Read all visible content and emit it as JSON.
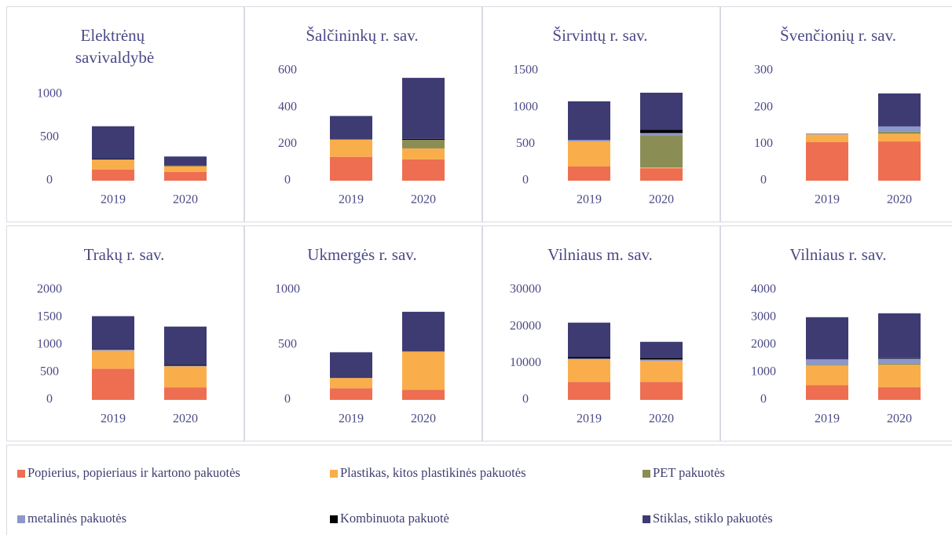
{
  "chart_data": [
    {
      "type": "bar",
      "title": "Elektrėnų savivaldybė",
      "categories": [
        "2019",
        "2020"
      ],
      "ylim": [
        0,
        1000
      ],
      "yticks": [
        0,
        500,
        1000
      ],
      "series": [
        {
          "values": [
            130,
            100
          ]
        },
        {
          "values": [
            115,
            70
          ]
        },
        {
          "values": [
            0,
            0
          ]
        },
        {
          "values": [
            0,
            0
          ]
        },
        {
          "values": [
            5,
            5
          ]
        },
        {
          "values": [
            380,
            105
          ]
        }
      ]
    },
    {
      "type": "bar",
      "title": "Šalčininkų r. sav.",
      "categories": [
        "2019",
        "2020"
      ],
      "ylim": [
        0,
        600
      ],
      "yticks": [
        0,
        200,
        400,
        600
      ],
      "series": [
        {
          "values": [
            130,
            116
          ]
        },
        {
          "values": [
            95,
            60
          ]
        },
        {
          "values": [
            0,
            47
          ]
        },
        {
          "values": [
            0,
            0
          ]
        },
        {
          "values": [
            0,
            5
          ]
        },
        {
          "values": [
            128,
            333
          ]
        }
      ]
    },
    {
      "type": "bar",
      "title": "Širvintų r. sav.",
      "categories": [
        "2019",
        "2020"
      ],
      "ylim": [
        0,
        1500
      ],
      "yticks": [
        0,
        500,
        1000,
        1500
      ],
      "series": [
        {
          "values": [
            193,
            170
          ]
        },
        {
          "values": [
            343,
            10
          ]
        },
        {
          "values": [
            0,
            440
          ]
        },
        {
          "values": [
            20,
            30
          ]
        },
        {
          "values": [
            0,
            45
          ]
        },
        {
          "values": [
            526,
            505
          ]
        }
      ]
    },
    {
      "type": "bar",
      "title": "Švenčionių r. sav.",
      "categories": [
        "2019",
        "2020"
      ],
      "ylim": [
        0,
        300
      ],
      "yticks": [
        0,
        100,
        200,
        300
      ],
      "series": [
        {
          "values": [
            105,
            107
          ]
        },
        {
          "values": [
            21,
            21
          ]
        },
        {
          "values": [
            0,
            5
          ]
        },
        {
          "values": [
            3,
            15
          ]
        },
        {
          "values": [
            0,
            0
          ]
        },
        {
          "values": [
            0,
            90
          ]
        }
      ]
    },
    {
      "type": "bar",
      "title": "Trakų r. sav.",
      "categories": [
        "2019",
        "2020"
      ],
      "ylim": [
        0,
        2000
      ],
      "yticks": [
        0,
        500,
        1000,
        1500,
        2000
      ],
      "series": [
        {
          "values": [
            567,
            227
          ]
        },
        {
          "values": [
            327,
            383
          ]
        },
        {
          "values": [
            0,
            0
          ]
        },
        {
          "values": [
            20,
            10
          ]
        },
        {
          "values": [
            10,
            15
          ]
        },
        {
          "values": [
            598,
            698
          ]
        }
      ]
    },
    {
      "type": "bar",
      "title": "Ukmergės r. sav.",
      "categories": [
        "2019",
        "2020"
      ],
      "ylim": [
        0,
        1000
      ],
      "yticks": [
        0,
        500,
        1000
      ],
      "series": [
        {
          "values": [
            106,
            92
          ]
        },
        {
          "values": [
            93,
            348
          ]
        },
        {
          "values": [
            0,
            0
          ]
        },
        {
          "values": [
            0,
            0
          ]
        },
        {
          "values": [
            0,
            0
          ]
        },
        {
          "values": [
            234,
            361
          ]
        }
      ]
    },
    {
      "type": "bar",
      "title": "Vilniaus m. sav.",
      "categories": [
        "2019",
        "2020"
      ],
      "ylim": [
        0,
        30000
      ],
      "yticks": [
        0,
        10000,
        20000,
        30000
      ],
      "series": [
        {
          "values": [
            4900,
            4900
          ]
        },
        {
          "values": [
            6170,
            5738
          ]
        },
        {
          "values": [
            0,
            0
          ]
        },
        {
          "values": [
            200,
            400
          ]
        },
        {
          "values": [
            400,
            400
          ]
        },
        {
          "values": [
            9400,
            4394
          ]
        }
      ]
    },
    {
      "type": "bar",
      "title": "Vilniaus r. sav.",
      "categories": [
        "2019",
        "2020"
      ],
      "ylim": [
        0,
        4000
      ],
      "yticks": [
        0,
        1000,
        2000,
        3000,
        4000
      ],
      "series": [
        {
          "values": [
            539,
            462
          ]
        },
        {
          "values": [
            709,
            815
          ]
        },
        {
          "values": [
            30,
            40
          ]
        },
        {
          "values": [
            197,
            183
          ]
        },
        {
          "values": [
            0,
            20
          ]
        },
        {
          "values": [
            1532,
            1629
          ]
        }
      ]
    }
  ],
  "legend": [
    {
      "name": "Popierius, popieriaus ir kartono pakuotės",
      "color": "#ee6e52"
    },
    {
      "name": "Plastikas, kitos plastikinės pakuotės",
      "color": "#f9ae4b"
    },
    {
      "name": "PET pakuotės",
      "color": "#8a8e54"
    },
    {
      "name": "metalinės pakuotės",
      "color": "#8d97cb"
    },
    {
      "name": "Kombinuota pakuotė",
      "color": "#000000"
    },
    {
      "name": "Stiklas, stiklo pakuotės",
      "color": "#3d3b72"
    }
  ]
}
